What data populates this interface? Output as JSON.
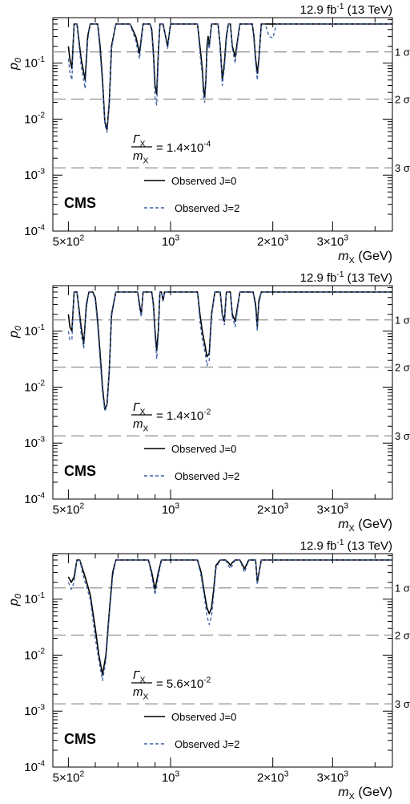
{
  "chart_data": [
    {
      "type": "line",
      "panel": "a",
      "lumi_label": "12.9 fb",
      "lumi_sup": "-1",
      "lumi_energy": "(13 TeV)",
      "experiment": "CMS",
      "ylabel": "p",
      "ylabel_sub": "0",
      "xlabel": "m",
      "xlabel_sub": "X",
      "xlabel_unit": "(GeV)",
      "xscale": "log",
      "yscale": "log",
      "xlim": [
        450,
        4500
      ],
      "ylim": [
        0.0001,
        0.65
      ],
      "x_ticks": [
        {
          "value": 500,
          "mant": "5×10",
          "exp": "2"
        },
        {
          "value": 1000,
          "mant": "10",
          "exp": "3"
        },
        {
          "value": 2000,
          "mant": "2×10",
          "exp": "3"
        },
        {
          "value": 3000,
          "mant": "3×10",
          "exp": "3"
        }
      ],
      "y_ticks": [
        {
          "value": 0.0001,
          "mant": "10",
          "exp": "-4"
        },
        {
          "value": 0.001,
          "mant": "10",
          "exp": "-3"
        },
        {
          "value": 0.01,
          "mant": "10",
          "exp": "-2"
        },
        {
          "value": 0.1,
          "mant": "10",
          "exp": "-1"
        }
      ],
      "sigma_lines": [
        {
          "label": "1 σ",
          "value": 0.1587
        },
        {
          "label": "2 σ",
          "value": 0.02275
        },
        {
          "label": "3 σ",
          "value": 0.00135
        }
      ],
      "width_label": {
        "num": "Γ",
        "num_sub": "X",
        "den": "m",
        "den_sub": "X",
        "value": "= 1.4×10",
        "exp": "-4"
      },
      "legend": [
        {
          "label": "Observed J=0",
          "style": "solid",
          "color": "#000000"
        },
        {
          "label": "Observed J=2",
          "style": "dashed",
          "color": "#3a5fa8"
        }
      ],
      "series": [
        {
          "name": "Observed J=0",
          "color": "#000000",
          "dashed": false,
          "x": [
            500,
            505,
            512,
            520,
            530,
            545,
            560,
            570,
            580,
            590,
            600,
            610,
            620,
            630,
            640,
            650,
            660,
            670,
            690,
            720,
            760,
            790,
            810,
            830,
            850,
            870,
            880,
            890,
            900,
            910,
            920,
            930,
            950,
            980,
            1000,
            1010,
            1030,
            1060,
            1100,
            1150,
            1200,
            1220,
            1240,
            1250,
            1260,
            1270,
            1280,
            1290,
            1300,
            1320,
            1350,
            1380,
            1400,
            1420,
            1440,
            1460,
            1480,
            1500,
            1520,
            1550,
            1600,
            1650,
            1700,
            1740,
            1760,
            1780,
            1800,
            1820,
            1850,
            1900,
            1950,
            2000,
            2050,
            4500
          ],
          "y": [
            0.2,
            0.12,
            0.08,
            0.5,
            0.5,
            0.12,
            0.05,
            0.3,
            0.5,
            0.5,
            0.5,
            0.5,
            0.2,
            0.05,
            0.009,
            0.0065,
            0.02,
            0.2,
            0.5,
            0.5,
            0.5,
            0.3,
            0.15,
            0.5,
            0.5,
            0.5,
            0.4,
            0.15,
            0.04,
            0.028,
            0.15,
            0.5,
            0.5,
            0.2,
            0.5,
            0.5,
            0.5,
            0.5,
            0.5,
            0.5,
            0.5,
            0.2,
            0.08,
            0.035,
            0.025,
            0.05,
            0.2,
            0.3,
            0.2,
            0.5,
            0.5,
            0.5,
            0.2,
            0.05,
            0.1,
            0.3,
            0.5,
            0.5,
            0.2,
            0.13,
            0.5,
            0.5,
            0.5,
            0.5,
            0.3,
            0.12,
            0.066,
            0.12,
            0.5,
            0.5,
            0.5,
            0.5,
            0.5,
            0.5
          ]
        },
        {
          "name": "Observed J=2",
          "color": "#3a5fa8",
          "dashed": true,
          "x": [
            500,
            505,
            512,
            520,
            530,
            545,
            560,
            570,
            580,
            590,
            600,
            610,
            620,
            630,
            640,
            650,
            660,
            670,
            690,
            720,
            760,
            790,
            810,
            830,
            850,
            870,
            880,
            890,
            900,
            910,
            920,
            930,
            950,
            980,
            1000,
            1010,
            1030,
            1060,
            1100,
            1150,
            1200,
            1220,
            1240,
            1250,
            1260,
            1270,
            1280,
            1290,
            1300,
            1320,
            1350,
            1380,
            1400,
            1420,
            1440,
            1460,
            1480,
            1500,
            1520,
            1550,
            1600,
            1650,
            1700,
            1740,
            1760,
            1780,
            1800,
            1820,
            1850,
            1900,
            1950,
            2000,
            2050,
            4500
          ],
          "y": [
            0.12,
            0.07,
            0.05,
            0.5,
            0.5,
            0.09,
            0.035,
            0.25,
            0.5,
            0.5,
            0.5,
            0.5,
            0.15,
            0.04,
            0.008,
            0.0058,
            0.018,
            0.18,
            0.5,
            0.5,
            0.5,
            0.25,
            0.12,
            0.5,
            0.5,
            0.5,
            0.35,
            0.12,
            0.025,
            0.018,
            0.12,
            0.5,
            0.5,
            0.18,
            0.5,
            0.5,
            0.5,
            0.5,
            0.5,
            0.5,
            0.5,
            0.15,
            0.06,
            0.025,
            0.02,
            0.04,
            0.15,
            0.25,
            0.18,
            0.5,
            0.5,
            0.5,
            0.18,
            0.04,
            0.08,
            0.25,
            0.5,
            0.5,
            0.18,
            0.1,
            0.5,
            0.5,
            0.5,
            0.5,
            0.25,
            0.1,
            0.05,
            0.1,
            0.5,
            0.5,
            0.3,
            0.28,
            0.5,
            0.5
          ]
        }
      ]
    },
    {
      "type": "line",
      "panel": "b",
      "lumi_label": "12.9 fb",
      "lumi_sup": "-1",
      "lumi_energy": "(13 TeV)",
      "experiment": "CMS",
      "ylabel": "p",
      "ylabel_sub": "0",
      "xlabel": "m",
      "xlabel_sub": "X",
      "xlabel_unit": "(GeV)",
      "xscale": "log",
      "yscale": "log",
      "xlim": [
        450,
        4500
      ],
      "ylim": [
        0.0001,
        0.65
      ],
      "x_ticks": [
        {
          "value": 500,
          "mant": "5×10",
          "exp": "2"
        },
        {
          "value": 1000,
          "mant": "10",
          "exp": "3"
        },
        {
          "value": 2000,
          "mant": "2×10",
          "exp": "3"
        },
        {
          "value": 3000,
          "mant": "3×10",
          "exp": "3"
        }
      ],
      "y_ticks": [
        {
          "value": 0.0001,
          "mant": "10",
          "exp": "-4"
        },
        {
          "value": 0.001,
          "mant": "10",
          "exp": "-3"
        },
        {
          "value": 0.01,
          "mant": "10",
          "exp": "-2"
        },
        {
          "value": 0.1,
          "mant": "10",
          "exp": "-1"
        }
      ],
      "sigma_lines": [
        {
          "label": "1 σ",
          "value": 0.1587
        },
        {
          "label": "2 σ",
          "value": 0.02275
        },
        {
          "label": "3 σ",
          "value": 0.00135
        }
      ],
      "width_label": {
        "num": "Γ",
        "num_sub": "X",
        "den": "m",
        "den_sub": "X",
        "value": "= 1.4×10",
        "exp": "-2"
      },
      "legend": [
        {
          "label": "Observed J=0",
          "style": "solid",
          "color": "#000000"
        },
        {
          "label": "Observed J=2",
          "style": "dashed",
          "color": "#3a5fa8"
        }
      ],
      "series": [
        {
          "name": "Observed J=0",
          "color": "#000000",
          "dashed": false,
          "x": [
            500,
            505,
            512,
            520,
            530,
            545,
            555,
            565,
            575,
            590,
            600,
            610,
            620,
            630,
            640,
            650,
            660,
            670,
            690,
            760,
            800,
            810,
            820,
            830,
            870,
            880,
            890,
            900,
            910,
            920,
            930,
            940,
            950,
            960,
            1000,
            1100,
            1200,
            1220,
            1240,
            1260,
            1280,
            1300,
            1320,
            1350,
            1400,
            1420,
            1440,
            1460,
            1480,
            1500,
            1520,
            1550,
            1600,
            1700,
            1750,
            1780,
            1800,
            1820,
            1850,
            4500
          ],
          "y": [
            0.2,
            0.12,
            0.1,
            0.5,
            0.5,
            0.12,
            0.06,
            0.3,
            0.5,
            0.5,
            0.4,
            0.15,
            0.04,
            0.01,
            0.004,
            0.005,
            0.02,
            0.2,
            0.5,
            0.5,
            0.5,
            0.3,
            0.2,
            0.5,
            0.5,
            0.5,
            0.3,
            0.1,
            0.045,
            0.1,
            0.5,
            0.5,
            0.35,
            0.5,
            0.5,
            0.5,
            0.5,
            0.2,
            0.1,
            0.06,
            0.035,
            0.04,
            0.2,
            0.5,
            0.5,
            0.2,
            0.15,
            0.5,
            0.5,
            0.5,
            0.2,
            0.15,
            0.5,
            0.5,
            0.5,
            0.3,
            0.12,
            0.35,
            0.5,
            0.5
          ]
        },
        {
          "name": "Observed J=2",
          "color": "#3a5fa8",
          "dashed": true,
          "x": [
            500,
            505,
            512,
            520,
            530,
            545,
            555,
            565,
            575,
            590,
            600,
            610,
            620,
            630,
            640,
            650,
            660,
            670,
            690,
            760,
            800,
            810,
            820,
            830,
            870,
            880,
            890,
            900,
            910,
            920,
            930,
            940,
            950,
            960,
            1000,
            1100,
            1200,
            1220,
            1240,
            1260,
            1280,
            1300,
            1320,
            1350,
            1400,
            1420,
            1440,
            1460,
            1480,
            1500,
            1520,
            1550,
            1600,
            1700,
            1750,
            1780,
            1800,
            1820,
            1850,
            4500
          ],
          "y": [
            0.1,
            0.07,
            0.07,
            0.5,
            0.5,
            0.09,
            0.05,
            0.25,
            0.5,
            0.5,
            0.35,
            0.12,
            0.03,
            0.008,
            0.0038,
            0.0045,
            0.018,
            0.18,
            0.5,
            0.5,
            0.5,
            0.25,
            0.18,
            0.5,
            0.5,
            0.5,
            0.25,
            0.08,
            0.032,
            0.08,
            0.5,
            0.5,
            0.35,
            0.5,
            0.5,
            0.5,
            0.5,
            0.15,
            0.07,
            0.045,
            0.024,
            0.03,
            0.18,
            0.5,
            0.5,
            0.18,
            0.13,
            0.5,
            0.5,
            0.5,
            0.18,
            0.12,
            0.5,
            0.5,
            0.5,
            0.25,
            0.1,
            0.3,
            0.5,
            0.5
          ]
        }
      ]
    },
    {
      "type": "line",
      "panel": "c",
      "lumi_label": "12.9 fb",
      "lumi_sup": "-1",
      "lumi_energy": "(13 TeV)",
      "experiment": "CMS",
      "ylabel": "p",
      "ylabel_sub": "0",
      "xlabel": "m",
      "xlabel_sub": "X",
      "xlabel_unit": "(GeV)",
      "xscale": "log",
      "yscale": "log",
      "xlim": [
        450,
        4500
      ],
      "ylim": [
        0.0001,
        0.65
      ],
      "x_ticks": [
        {
          "value": 500,
          "mant": "5×10",
          "exp": "2"
        },
        {
          "value": 1000,
          "mant": "10",
          "exp": "3"
        },
        {
          "value": 2000,
          "mant": "2×10",
          "exp": "3"
        },
        {
          "value": 3000,
          "mant": "3×10",
          "exp": "3"
        }
      ],
      "y_ticks": [
        {
          "value": 0.0001,
          "mant": "10",
          "exp": "-4"
        },
        {
          "value": 0.001,
          "mant": "10",
          "exp": "-3"
        },
        {
          "value": 0.01,
          "mant": "10",
          "exp": "-2"
        },
        {
          "value": 0.1,
          "mant": "10",
          "exp": "-1"
        }
      ],
      "sigma_lines": [
        {
          "label": "1 σ",
          "value": 0.1587
        },
        {
          "label": "2 σ",
          "value": 0.02275
        },
        {
          "label": "3 σ",
          "value": 0.00135
        }
      ],
      "width_label": {
        "num": "Γ",
        "num_sub": "X",
        "den": "m",
        "den_sub": "X",
        "value": "= 5.6×10",
        "exp": "-2"
      },
      "legend": [
        {
          "label": "Observed J=0",
          "style": "solid",
          "color": "#000000"
        },
        {
          "label": "Observed J=2",
          "style": "dashed",
          "color": "#3a5fa8"
        }
      ],
      "series": [
        {
          "name": "Observed J=0",
          "color": "#000000",
          "dashed": false,
          "x": [
            500,
            510,
            520,
            530,
            540,
            550,
            560,
            580,
            600,
            615,
            630,
            645,
            660,
            675,
            690,
            850,
            860,
            880,
            900,
            920,
            940,
            960,
            1150,
            1200,
            1230,
            1260,
            1280,
            1300,
            1320,
            1340,
            1360,
            1400,
            1450,
            1480,
            1500,
            1520,
            1550,
            1600,
            1650,
            1700,
            1750,
            1780,
            1800,
            1850,
            1900,
            4500
          ],
          "y": [
            0.25,
            0.2,
            0.25,
            0.5,
            0.5,
            0.35,
            0.25,
            0.12,
            0.03,
            0.01,
            0.0045,
            0.01,
            0.06,
            0.3,
            0.5,
            0.5,
            0.5,
            0.3,
            0.15,
            0.3,
            0.5,
            0.5,
            0.5,
            0.5,
            0.3,
            0.12,
            0.07,
            0.055,
            0.07,
            0.15,
            0.4,
            0.5,
            0.5,
            0.45,
            0.4,
            0.45,
            0.5,
            0.5,
            0.35,
            0.5,
            0.5,
            0.5,
            0.2,
            0.5,
            0.5,
            0.5
          ]
        },
        {
          "name": "Observed J=2",
          "color": "#3a5fa8",
          "dashed": true,
          "x": [
            500,
            510,
            520,
            530,
            540,
            550,
            560,
            580,
            600,
            615,
            630,
            645,
            660,
            675,
            690,
            850,
            860,
            880,
            900,
            920,
            940,
            960,
            1150,
            1200,
            1230,
            1260,
            1280,
            1300,
            1320,
            1340,
            1360,
            1400,
            1450,
            1480,
            1500,
            1520,
            1550,
            1600,
            1650,
            1700,
            1750,
            1780,
            1800,
            1850,
            1900,
            4500
          ],
          "y": [
            0.2,
            0.15,
            0.2,
            0.5,
            0.5,
            0.3,
            0.2,
            0.1,
            0.02,
            0.008,
            0.0035,
            0.008,
            0.05,
            0.25,
            0.5,
            0.5,
            0.5,
            0.25,
            0.12,
            0.25,
            0.5,
            0.5,
            0.5,
            0.5,
            0.25,
            0.1,
            0.05,
            0.035,
            0.05,
            0.12,
            0.35,
            0.5,
            0.5,
            0.4,
            0.35,
            0.4,
            0.5,
            0.5,
            0.3,
            0.5,
            0.5,
            0.5,
            0.18,
            0.5,
            0.5,
            0.5
          ]
        }
      ]
    }
  ]
}
